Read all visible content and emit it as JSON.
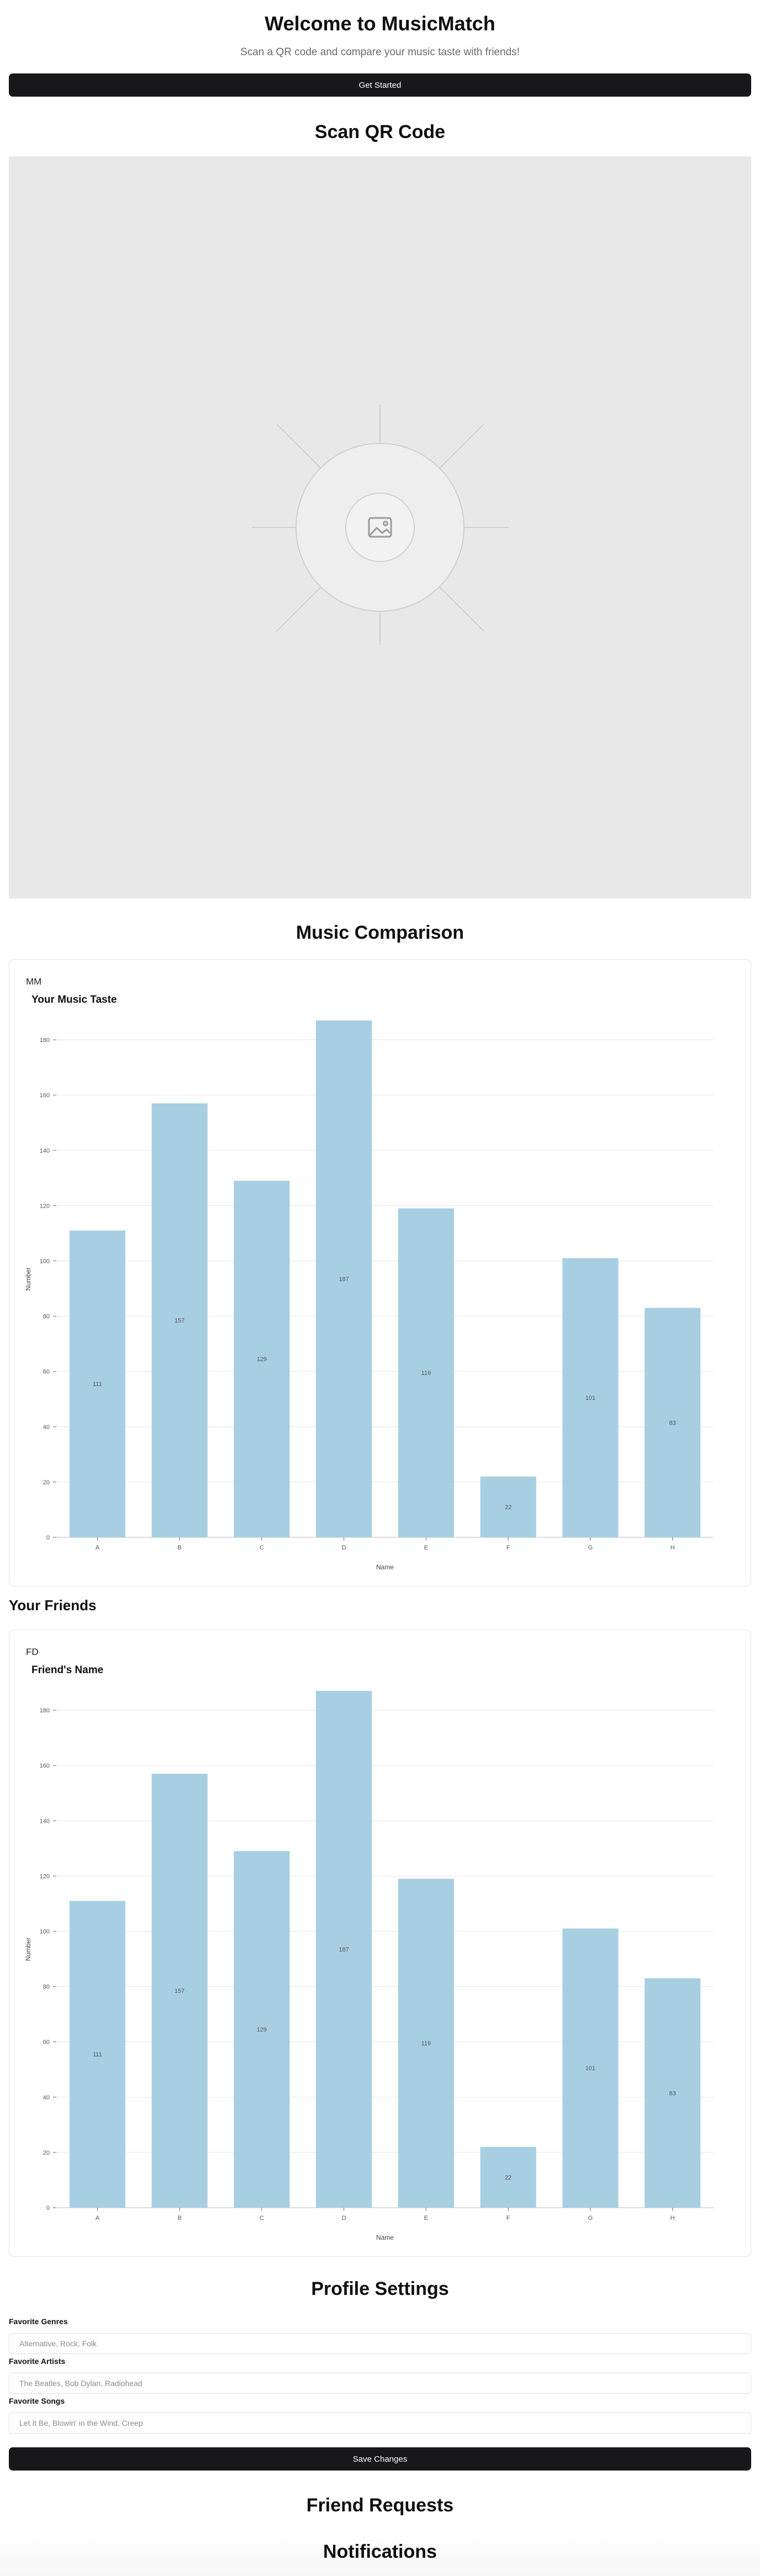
{
  "hero": {
    "title": "Welcome to MusicMatch",
    "subtitle": "Scan a QR code and compare your music taste with friends!",
    "cta_label": "Get Started"
  },
  "scan": {
    "title": "Scan QR Code",
    "placeholder_icon": "image-icon"
  },
  "comparison": {
    "title": "Music Comparison",
    "you": {
      "avatar": "MM",
      "heading": "Your Music Taste"
    },
    "friends_heading": "Your Friends",
    "friend": {
      "avatar": "FD",
      "heading": "Friend's Name"
    }
  },
  "chart_data": [
    {
      "type": "bar",
      "title": "Your Music Taste",
      "categories": [
        "A",
        "B",
        "C",
        "D",
        "E",
        "F",
        "G",
        "H"
      ],
      "values": [
        111,
        157,
        129,
        187,
        119,
        22,
        101,
        83
      ],
      "xlabel": "Name",
      "ylabel": "Number",
      "ylim": [
        0,
        187
      ],
      "yticks": [
        0,
        20,
        40,
        60,
        80,
        100,
        120,
        140,
        160,
        180
      ],
      "grid": true,
      "color": "#a8cee2"
    },
    {
      "type": "bar",
      "title": "Friend's Name",
      "categories": [
        "A",
        "B",
        "C",
        "D",
        "E",
        "F",
        "G",
        "H"
      ],
      "values": [
        111,
        157,
        129,
        187,
        119,
        22,
        101,
        83
      ],
      "xlabel": "Name",
      "ylabel": "Number",
      "ylim": [
        0,
        187
      ],
      "yticks": [
        0,
        20,
        40,
        60,
        80,
        100,
        120,
        140,
        160,
        180
      ],
      "grid": true,
      "color": "#a8cee2"
    }
  ],
  "profile": {
    "title": "Profile Settings",
    "genres_label": "Favorite Genres",
    "genres_placeholder": "Alternative, Rock, Folk",
    "artists_label": "Favorite Artists",
    "artists_placeholder": "The Beatles, Bob Dylan, Radiohead",
    "songs_label": "Favorite Songs",
    "songs_placeholder": "Let It Be, Blowin' in the Wind, Creep",
    "save_label": "Save Changes"
  },
  "requests": {
    "title": "Friend Requests"
  },
  "notifications": {
    "title": "Notifications"
  },
  "colors": {
    "primary_button": "#18181b",
    "bar": "#a8cee2",
    "qr_background": "#e8e8e8"
  }
}
